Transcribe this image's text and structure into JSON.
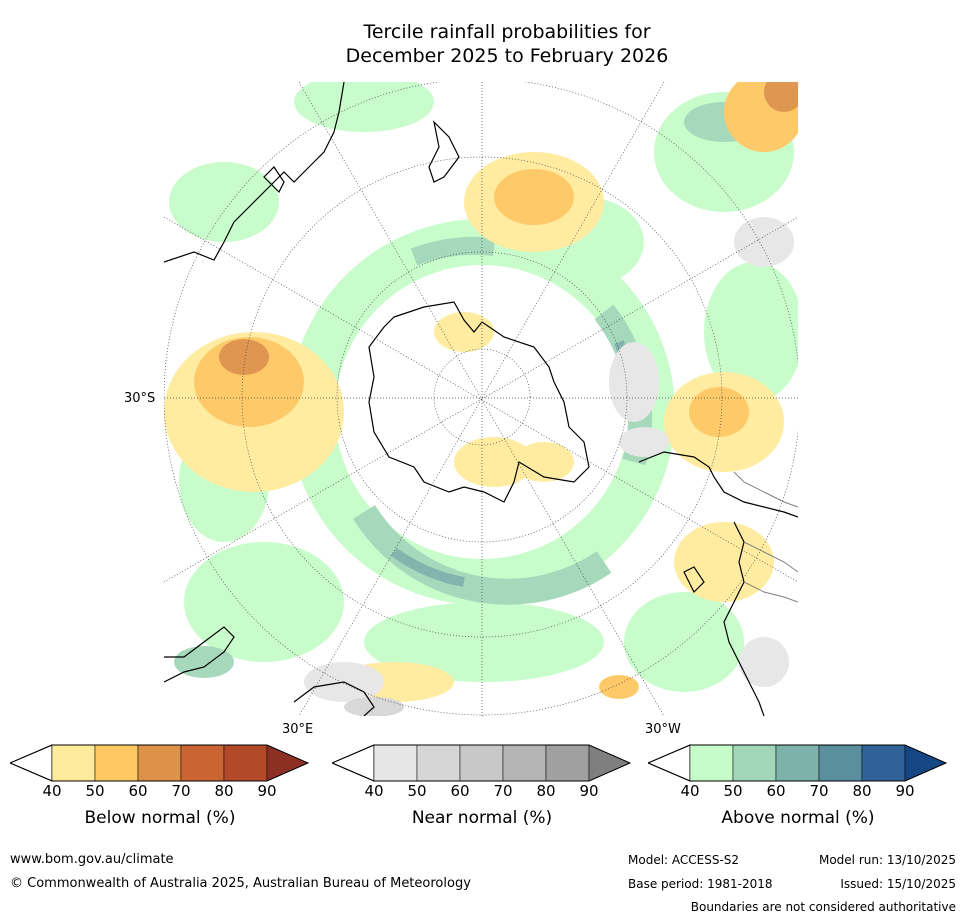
{
  "title_line1": "Tercile rainfall probabilities for",
  "title_line2": "December 2025 to February 2026",
  "map": {
    "labels": {
      "lat_30s": "30°S",
      "lon_30e": "30°E",
      "lon_30w": "30°W"
    },
    "colors": {
      "ocean": "#ffffff",
      "coast": "#000000",
      "border": "#808080",
      "graticule": "#444444"
    }
  },
  "legends": [
    {
      "title": "Below normal (%)",
      "ticks": [
        "40",
        "50",
        "60",
        "70",
        "80",
        "90"
      ],
      "colors": [
        "#ffeb9c",
        "#fec862",
        "#de9148",
        "#ca6533",
        "#b24a2a",
        "#8c3024"
      ]
    },
    {
      "title": "Near normal (%)",
      "ticks": [
        "40",
        "50",
        "60",
        "70",
        "80",
        "90"
      ],
      "colors": [
        "#e6e6e6",
        "#d6d6d6",
        "#c8c8c8",
        "#b4b4b4",
        "#a0a0a0",
        "#7f7f7f"
      ]
    },
    {
      "title": "Above normal (%)",
      "ticks": [
        "40",
        "50",
        "60",
        "70",
        "80",
        "90"
      ],
      "colors": [
        "#c6fcc9",
        "#a2d6b8",
        "#7db2ab",
        "#5b8f9f",
        "#2f6397",
        "#154785"
      ]
    }
  ],
  "footer": {
    "url": "www.bom.gov.au/climate",
    "copyright": "© Commonwealth of Australia 2025, Australian Bureau of Meteorology",
    "model": "Model: ACCESS-S2",
    "base_period": "Base period: 1981-2018",
    "model_run": "Model run: 13/10/2025",
    "issued": "Issued: 15/10/2025",
    "disclaimer": "Boundaries are not considered authoritative"
  }
}
